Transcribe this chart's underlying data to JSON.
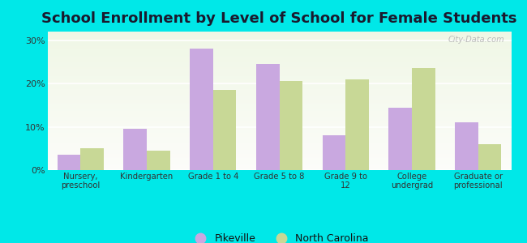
{
  "title": "School Enrollment by Level of School for Female Students",
  "categories": [
    "Nursery,\npreschool",
    "Kindergarten",
    "Grade 1 to 4",
    "Grade 5 to 8",
    "Grade 9 to\n12",
    "College\nundergrad",
    "Graduate or\nprofessional"
  ],
  "pikeville": [
    3.5,
    9.5,
    28.0,
    24.5,
    8.0,
    14.5,
    11.0
  ],
  "north_carolina": [
    5.0,
    4.5,
    18.5,
    20.5,
    21.0,
    23.5,
    6.0
  ],
  "pikeville_color": "#c9a8e0",
  "nc_color": "#c8d896",
  "background_outer": "#00e8e8",
  "ylim": [
    0,
    32
  ],
  "yticks": [
    0,
    10,
    20,
    30
  ],
  "ytick_labels": [
    "0%",
    "10%",
    "20%",
    "30%"
  ],
  "bar_width": 0.35,
  "legend_pikeville": "Pikeville",
  "legend_nc": "North Carolina",
  "title_fontsize": 13,
  "watermark": "City-Data.com"
}
